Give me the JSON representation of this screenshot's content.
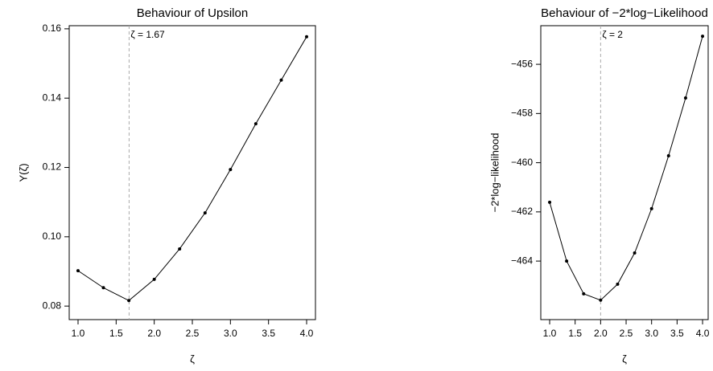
{
  "chart_data": [
    {
      "type": "line",
      "title": "Behaviour of Upsilon",
      "xlabel": "ζ",
      "ylabel": "Υ(ζ)",
      "x": [
        1,
        1.333,
        1.667,
        2,
        2.333,
        2.667,
        3,
        3.333,
        3.667,
        4
      ],
      "values": [
        0.0902,
        0.0853,
        0.0816,
        0.0877,
        0.0965,
        0.1069,
        0.1194,
        0.1326,
        0.1452,
        0.1577
      ],
      "color": "#000000",
      "xlim": [
        0.884,
        4.116
      ],
      "ylim": [
        0.0761,
        0.1609
      ],
      "xticks": [
        {
          "value": 1,
          "label": "1.0"
        },
        {
          "value": 1.5,
          "label": "1.5"
        },
        {
          "value": 2,
          "label": "2.0"
        },
        {
          "value": 2.5,
          "label": "2.5"
        },
        {
          "value": 3,
          "label": "3.0"
        },
        {
          "value": 3.5,
          "label": "3.5"
        },
        {
          "value": 4,
          "label": "4.0"
        }
      ],
      "yticks": [
        0.08,
        {
          "value": 0.1,
          "label": "0.10"
        },
        0.12,
        0.14,
        0.16
      ],
      "vline": 1.67,
      "annotation": "ζ = 1.67"
    },
    {
      "type": "line",
      "title": "Behaviour of −2*log−Likelihood",
      "xlabel": "ζ",
      "ylabel": "−2*log−likelihood",
      "x": [
        1,
        1.333,
        1.667,
        2,
        2.333,
        2.667,
        3,
        3.333,
        3.667,
        4
      ],
      "values": [
        -461.61,
        -464.0,
        -465.33,
        -465.59,
        -464.94,
        -463.67,
        -461.87,
        -459.72,
        -457.37,
        -454.86
      ],
      "color": "#000000",
      "xlim": [
        0.826,
        4.11
      ],
      "ylim": [
        -466.38,
        -454.43
      ],
      "xticks": [
        {
          "value": 1,
          "label": "1.0"
        },
        {
          "value": 1.5,
          "label": "1.5"
        },
        {
          "value": 2,
          "label": "2.0"
        },
        {
          "value": 2.5,
          "label": "2.5"
        },
        {
          "value": 3,
          "label": "3.0"
        },
        {
          "value": 3.5,
          "label": "3.5"
        },
        {
          "value": 4,
          "label": "4.0"
        }
      ],
      "yticks": [
        {
          "value": -464,
          "label": "−464"
        },
        {
          "value": -462,
          "label": "−462"
        },
        {
          "value": -460,
          "label": "−460"
        },
        {
          "value": -458,
          "label": "−458"
        },
        {
          "value": -456,
          "label": "−456"
        }
      ],
      "vline": 2,
      "annotation": "ζ = 2"
    }
  ]
}
